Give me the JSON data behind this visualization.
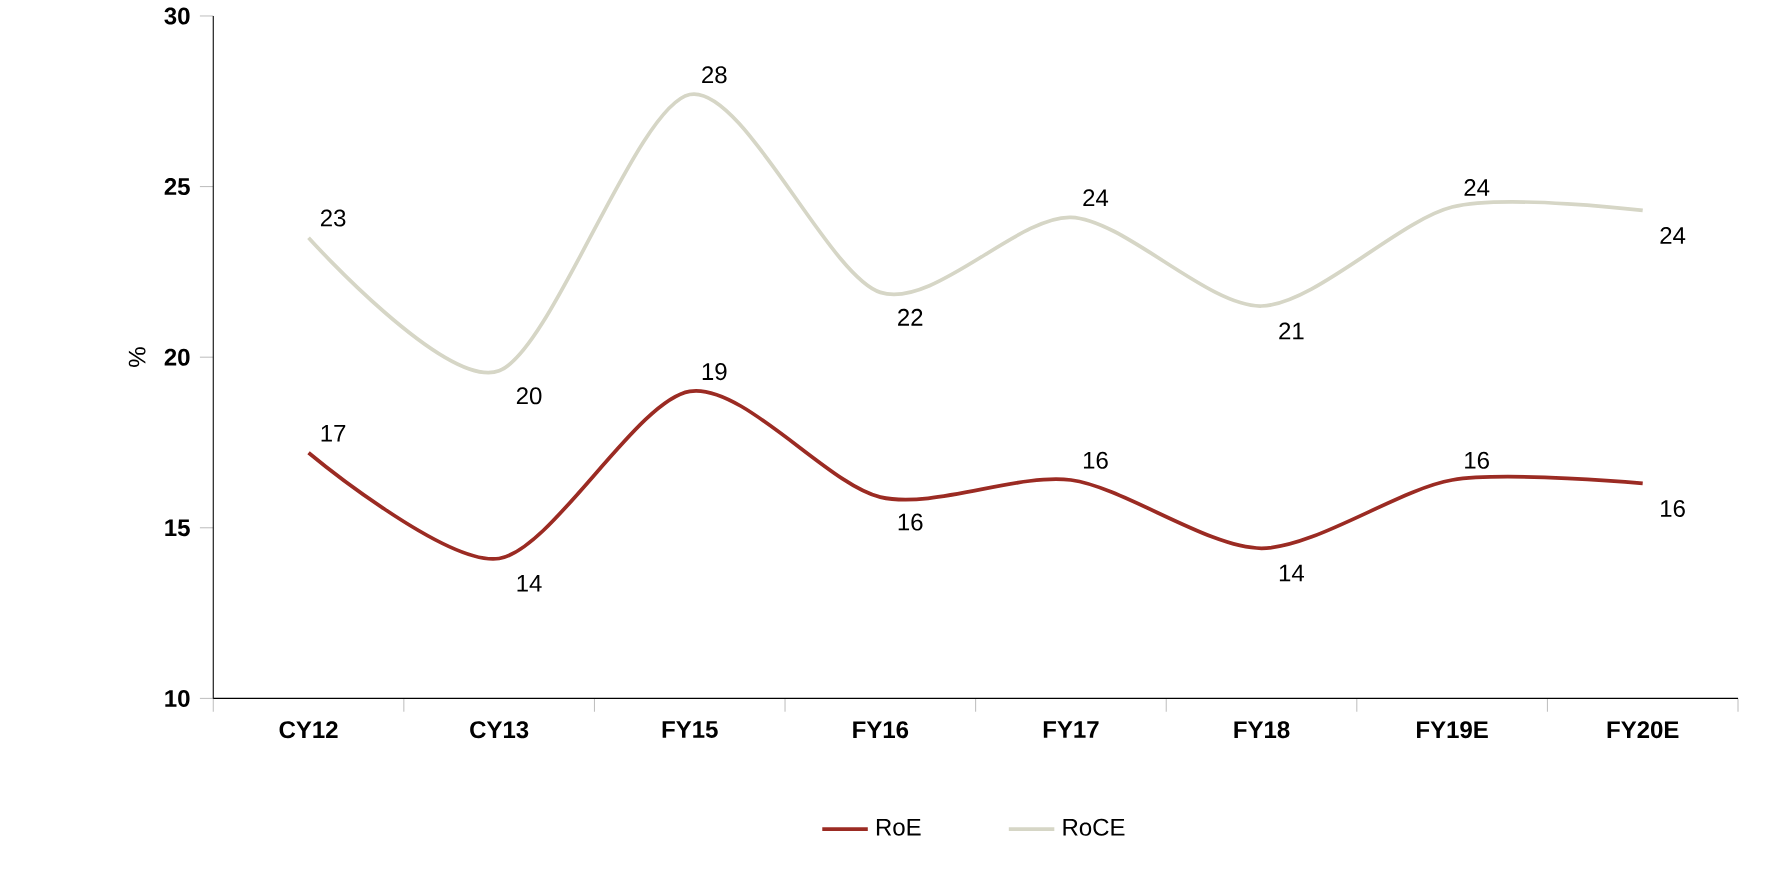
{
  "chart_data": {
    "type": "line",
    "ylabel": "%",
    "categories": [
      "CY12",
      "CY13",
      "FY15",
      "FY16",
      "FY17",
      "FY18",
      "FY19E",
      "FY20E"
    ],
    "series": [
      {
        "name": "RoE",
        "color": "#9b2b23",
        "values": [
          17.2,
          14.1,
          19.0,
          15.9,
          16.4,
          14.4,
          16.4,
          16.3
        ],
        "value_labels": [
          "17",
          "14",
          "19",
          "16",
          "16",
          "14",
          "16",
          "16"
        ]
      },
      {
        "name": "RoCE",
        "color": "#d6d6c6",
        "values": [
          23.5,
          19.6,
          27.7,
          21.9,
          24.1,
          21.5,
          24.4,
          24.3
        ],
        "value_labels": [
          "23",
          "20",
          "28",
          "22",
          "24",
          "21",
          "24",
          "24"
        ]
      }
    ],
    "ylim": [
      10,
      30
    ],
    "yticks": [
      10,
      15,
      20,
      25,
      30
    ],
    "legend": "bottom",
    "grid": false,
    "marker": "none",
    "line_style": "solid"
  }
}
